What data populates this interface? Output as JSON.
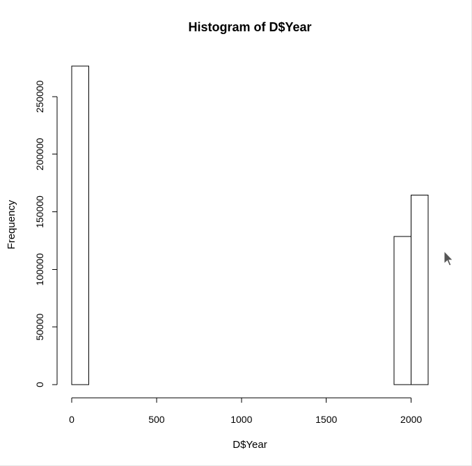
{
  "chart_data": {
    "type": "bar",
    "title": "Histogram of D$Year",
    "xlabel": "D$Year",
    "ylabel": "Frequency",
    "bins": [
      {
        "start": 0,
        "end": 100,
        "count": 276500
      },
      {
        "start": 100,
        "end": 200,
        "count": 0
      },
      {
        "start": 200,
        "end": 300,
        "count": 0
      },
      {
        "start": 300,
        "end": 400,
        "count": 0
      },
      {
        "start": 400,
        "end": 500,
        "count": 0
      },
      {
        "start": 500,
        "end": 600,
        "count": 0
      },
      {
        "start": 600,
        "end": 700,
        "count": 0
      },
      {
        "start": 700,
        "end": 800,
        "count": 0
      },
      {
        "start": 800,
        "end": 900,
        "count": 0
      },
      {
        "start": 900,
        "end": 1000,
        "count": 0
      },
      {
        "start": 1000,
        "end": 1100,
        "count": 0
      },
      {
        "start": 1100,
        "end": 1200,
        "count": 0
      },
      {
        "start": 1200,
        "end": 1300,
        "count": 0
      },
      {
        "start": 1300,
        "end": 1400,
        "count": 0
      },
      {
        "start": 1400,
        "end": 1500,
        "count": 0
      },
      {
        "start": 1500,
        "end": 1600,
        "count": 0
      },
      {
        "start": 1600,
        "end": 1700,
        "count": 0
      },
      {
        "start": 1700,
        "end": 1800,
        "count": 0
      },
      {
        "start": 1800,
        "end": 1900,
        "count": 0
      },
      {
        "start": 1900,
        "end": 2000,
        "count": 128500
      },
      {
        "start": 2000,
        "end": 2100,
        "count": 164500
      }
    ],
    "xlim": [
      0,
      2100
    ],
    "ylim": [
      0,
      276500
    ],
    "x_ticks": [
      0,
      500,
      1000,
      1500,
      2000
    ],
    "y_ticks": [
      0,
      50000,
      100000,
      150000,
      200000,
      250000
    ],
    "grid": false
  },
  "colors": {
    "bar_fill": "#ffffff",
    "bar_stroke": "#000000",
    "background": "#ffffff"
  },
  "icons": {
    "cursor": "mouse-pointer-icon"
  }
}
